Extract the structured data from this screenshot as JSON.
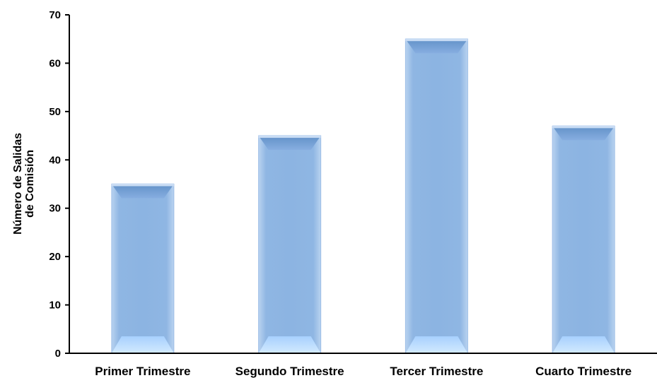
{
  "chart_data": {
    "type": "bar",
    "title": "",
    "xlabel": "",
    "ylabel_lines": [
      "Número de Salidas",
      "de Comisión"
    ],
    "categories": [
      "Primer Trimestre",
      "Segundo Trimestre",
      "Tercer Trimestre",
      "Cuarto Trimestre"
    ],
    "values": [
      35,
      45,
      65,
      47
    ],
    "ylim": [
      0,
      70
    ],
    "yticks": [
      0,
      10,
      20,
      30,
      40,
      50,
      60,
      70
    ],
    "grid": false,
    "legend": "none",
    "bar_color": "#8DB3E2"
  }
}
